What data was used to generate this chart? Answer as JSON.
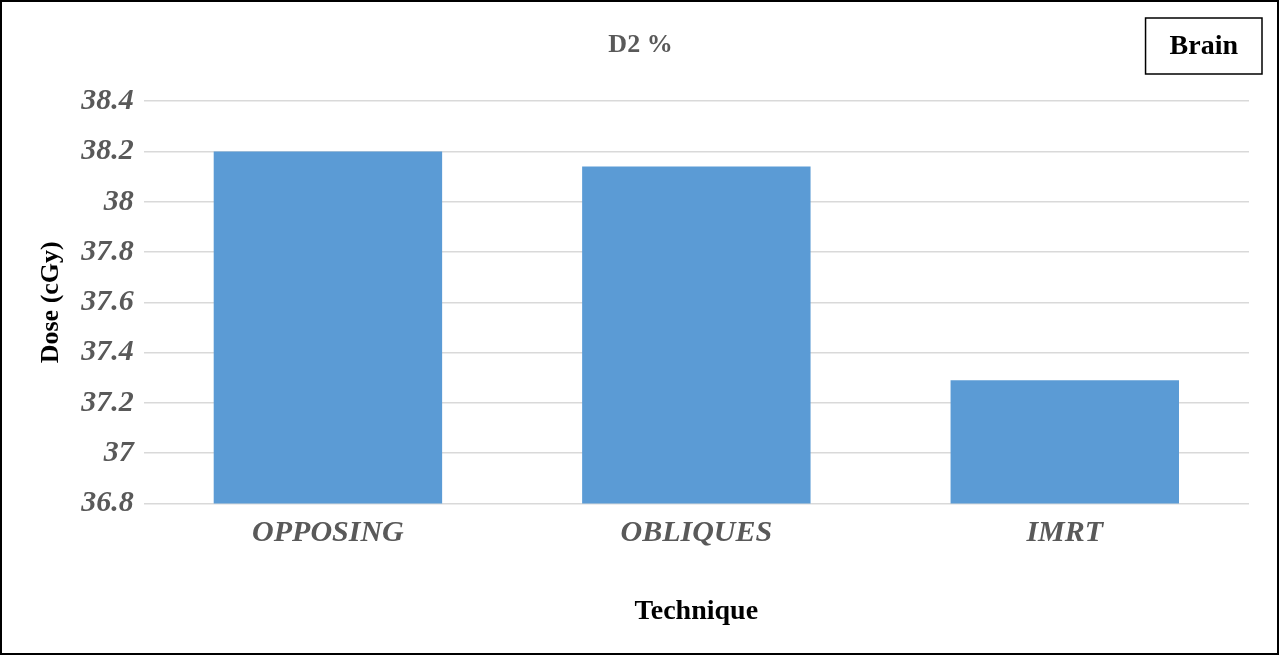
{
  "chart_data": {
    "type": "bar",
    "title": "D2 %",
    "xlabel": "Technique",
    "ylabel": "Dose (cGy)",
    "categories": [
      "OPPOSING",
      "OBLIQUES",
      "IMRT"
    ],
    "values": [
      38.2,
      38.14,
      37.29
    ],
    "color": "#5b9bd5",
    "ylim": [
      36.8,
      38.4
    ],
    "yticks": [
      36.8,
      37,
      37.2,
      37.4,
      37.6,
      37.8,
      38,
      38.2,
      38.4
    ],
    "grid": "y",
    "legend": false,
    "annotations": [
      "Brain"
    ]
  }
}
